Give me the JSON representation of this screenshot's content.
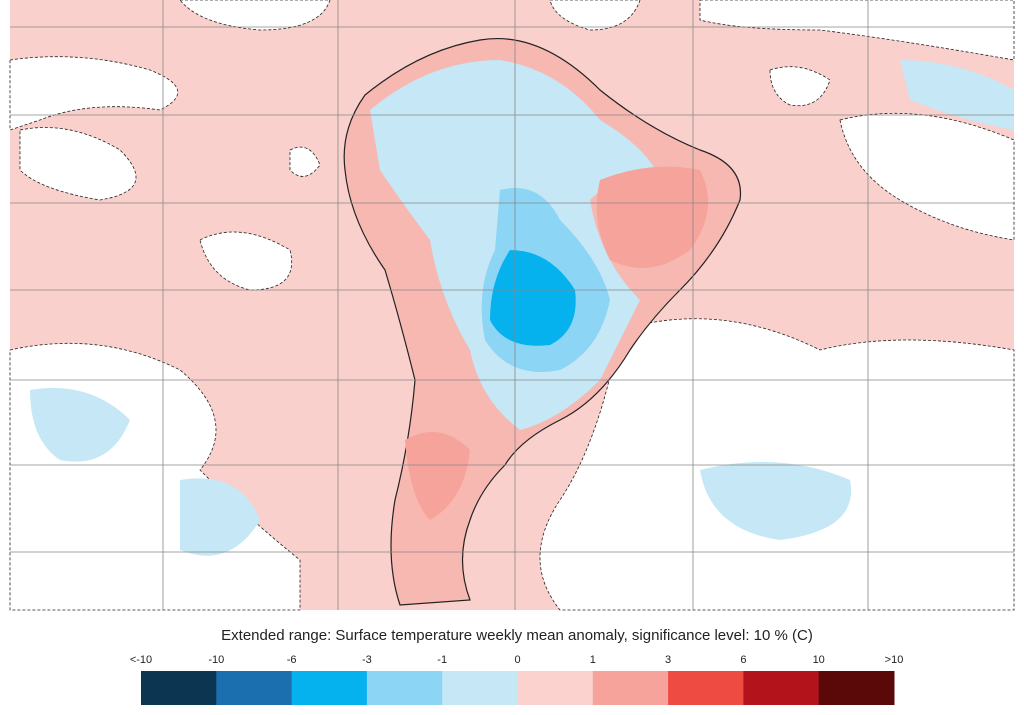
{
  "title": "Extended range: Surface temperature weekly mean anomaly, significance level: 10 % (C)",
  "legend": {
    "labels": [
      "<-10",
      "-10",
      "-6",
      "-3",
      "-1",
      "0",
      "1",
      "3",
      "6",
      "10",
      ">10"
    ],
    "colors": [
      "#0b3550",
      "#1c6fae",
      "#06b2ee",
      "#8dd5f4",
      "#c5e7f6",
      "#fbd2ce",
      "#f6a39c",
      "#ee4b43",
      "#b3141b",
      "#5b0808"
    ]
  }
}
